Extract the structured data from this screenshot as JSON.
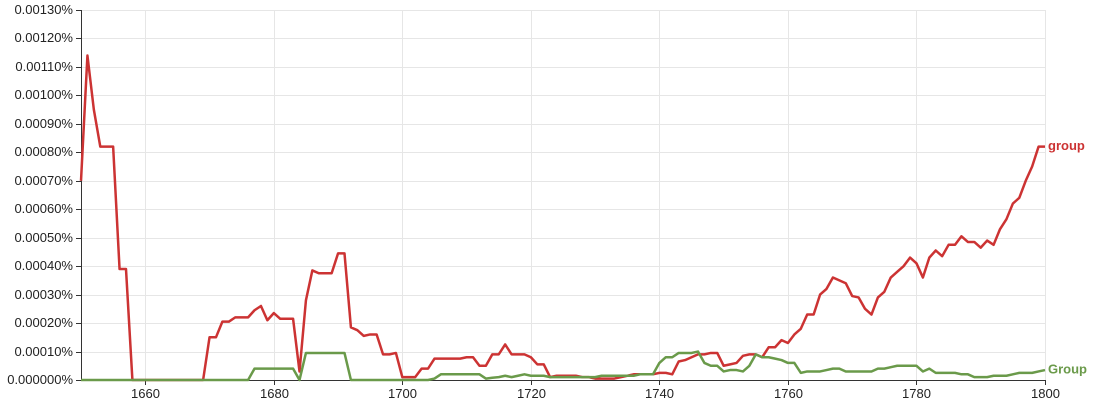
{
  "chart_data": {
    "type": "line",
    "title": "",
    "xlabel": "",
    "ylabel": "",
    "xlim": [
      1650,
      1800
    ],
    "ylim": [
      0,
      0.0013
    ],
    "grid": true,
    "legend": "inline-right",
    "x_ticks": [
      {
        "value": 1660,
        "label": "1660"
      },
      {
        "value": 1680,
        "label": "1680"
      },
      {
        "value": 1700,
        "label": "1700"
      },
      {
        "value": 1720,
        "label": "1720"
      },
      {
        "value": 1740,
        "label": "1740"
      },
      {
        "value": 1760,
        "label": "1760"
      },
      {
        "value": 1780,
        "label": "1780"
      },
      {
        "value": 1800,
        "label": "1800"
      }
    ],
    "y_ticks": [
      {
        "value": 0.0,
        "label": "0.000000%"
      },
      {
        "value": 0.0001,
        "label": "0.00010%"
      },
      {
        "value": 0.0002,
        "label": "0.00020%"
      },
      {
        "value": 0.0003,
        "label": "0.00030%"
      },
      {
        "value": 0.0004,
        "label": "0.00040%"
      },
      {
        "value": 0.0005,
        "label": "0.00050%"
      },
      {
        "value": 0.0006,
        "label": "0.00060%"
      },
      {
        "value": 0.0007,
        "label": "0.00070%"
      },
      {
        "value": 0.0008,
        "label": "0.00080%"
      },
      {
        "value": 0.0009,
        "label": "0.00090%"
      },
      {
        "value": 0.001,
        "label": "0.00100%"
      },
      {
        "value": 0.0011,
        "label": "0.00110%"
      },
      {
        "value": 0.0012,
        "label": "0.00120%"
      },
      {
        "value": 0.0013,
        "label": "0.00130%"
      }
    ],
    "series": [
      {
        "name": "group",
        "color": "#cc3333",
        "points": [
          [
            1650,
            0.0007
          ],
          [
            1651,
            0.00114
          ],
          [
            1652,
            0.00095
          ],
          [
            1653,
            0.00082
          ],
          [
            1654,
            0.00082
          ],
          [
            1655,
            0.00082
          ],
          [
            1656,
            0.00039
          ],
          [
            1657,
            0.00039
          ],
          [
            1658,
            0.0
          ],
          [
            1659,
            0.0
          ],
          [
            1660,
            0.0
          ],
          [
            1661,
            0.0
          ],
          [
            1662,
            0.0
          ],
          [
            1663,
            0.0
          ],
          [
            1664,
            0.0
          ],
          [
            1665,
            0.0
          ],
          [
            1666,
            0.0
          ],
          [
            1667,
            0.0
          ],
          [
            1668,
            0.0
          ],
          [
            1669,
            0.0
          ],
          [
            1670,
            0.00015
          ],
          [
            1671,
            0.00015
          ],
          [
            1672,
            0.000205
          ],
          [
            1673,
            0.000205
          ],
          [
            1674,
            0.00022
          ],
          [
            1675,
            0.00022
          ],
          [
            1676,
            0.00022
          ],
          [
            1677,
            0.000245
          ],
          [
            1678,
            0.00026
          ],
          [
            1679,
            0.00021
          ],
          [
            1680,
            0.000235
          ],
          [
            1681,
            0.000215
          ],
          [
            1682,
            0.000215
          ],
          [
            1683,
            0.000215
          ],
          [
            1684,
            3e-05
          ],
          [
            1685,
            0.00028
          ],
          [
            1686,
            0.000385
          ],
          [
            1687,
            0.000375
          ],
          [
            1688,
            0.000375
          ],
          [
            1689,
            0.000375
          ],
          [
            1690,
            0.000445
          ],
          [
            1691,
            0.000445
          ],
          [
            1692,
            0.000185
          ],
          [
            1693,
            0.000175
          ],
          [
            1694,
            0.000155
          ],
          [
            1695,
            0.00016
          ],
          [
            1696,
            0.00016
          ],
          [
            1697,
            9e-05
          ],
          [
            1698,
            9e-05
          ],
          [
            1699,
            9.5e-05
          ],
          [
            1700,
            1e-05
          ],
          [
            1701,
            1e-05
          ],
          [
            1702,
            1e-05
          ],
          [
            1703,
            4e-05
          ],
          [
            1704,
            4e-05
          ],
          [
            1705,
            7.5e-05
          ],
          [
            1706,
            7.5e-05
          ],
          [
            1707,
            7.5e-05
          ],
          [
            1708,
            7.5e-05
          ],
          [
            1709,
            7.5e-05
          ],
          [
            1710,
            8e-05
          ],
          [
            1711,
            8e-05
          ],
          [
            1712,
            5e-05
          ],
          [
            1713,
            5e-05
          ],
          [
            1714,
            9e-05
          ],
          [
            1715,
            9e-05
          ],
          [
            1716,
            0.000125
          ],
          [
            1717,
            9e-05
          ],
          [
            1718,
            9e-05
          ],
          [
            1719,
            9e-05
          ],
          [
            1720,
            8e-05
          ],
          [
            1721,
            5.5e-05
          ],
          [
            1722,
            5.5e-05
          ],
          [
            1723,
            1e-05
          ],
          [
            1724,
            1.5e-05
          ],
          [
            1725,
            1.5e-05
          ],
          [
            1726,
            1.5e-05
          ],
          [
            1727,
            1.5e-05
          ],
          [
            1728,
            1e-05
          ],
          [
            1729,
            1e-05
          ],
          [
            1730,
            5e-06
          ],
          [
            1731,
            5e-06
          ],
          [
            1732,
            5e-06
          ],
          [
            1733,
            5e-06
          ],
          [
            1734,
            1e-05
          ],
          [
            1735,
            1.5e-05
          ],
          [
            1736,
            2e-05
          ],
          [
            1737,
            2e-05
          ],
          [
            1738,
            2e-05
          ],
          [
            1739,
            2e-05
          ],
          [
            1740,
            2.5e-05
          ],
          [
            1741,
            2.5e-05
          ],
          [
            1742,
            2e-05
          ],
          [
            1743,
            6.5e-05
          ],
          [
            1744,
            7e-05
          ],
          [
            1745,
            8e-05
          ],
          [
            1746,
            9e-05
          ],
          [
            1747,
            9e-05
          ],
          [
            1748,
            9.5e-05
          ],
          [
            1749,
            9.5e-05
          ],
          [
            1750,
            5e-05
          ],
          [
            1751,
            5.5e-05
          ],
          [
            1752,
            6e-05
          ],
          [
            1753,
            8.5e-05
          ],
          [
            1754,
            9e-05
          ],
          [
            1755,
            9e-05
          ],
          [
            1756,
            8e-05
          ],
          [
            1757,
            0.000115
          ],
          [
            1758,
            0.000115
          ],
          [
            1759,
            0.00014
          ],
          [
            1760,
            0.00013
          ],
          [
            1761,
            0.00016
          ],
          [
            1762,
            0.00018
          ],
          [
            1763,
            0.00023
          ],
          [
            1764,
            0.00023
          ],
          [
            1765,
            0.0003
          ],
          [
            1766,
            0.00032
          ],
          [
            1767,
            0.00036
          ],
          [
            1768,
            0.00035
          ],
          [
            1769,
            0.00034
          ],
          [
            1770,
            0.000295
          ],
          [
            1771,
            0.00029
          ],
          [
            1772,
            0.00025
          ],
          [
            1773,
            0.00023
          ],
          [
            1774,
            0.00029
          ],
          [
            1775,
            0.00031
          ],
          [
            1776,
            0.00036
          ],
          [
            1777,
            0.00038
          ],
          [
            1778,
            0.0004
          ],
          [
            1779,
            0.00043
          ],
          [
            1780,
            0.00041
          ],
          [
            1781,
            0.00036
          ],
          [
            1782,
            0.00043
          ],
          [
            1783,
            0.000455
          ],
          [
            1784,
            0.000435
          ],
          [
            1785,
            0.000475
          ],
          [
            1786,
            0.000475
          ],
          [
            1787,
            0.000505
          ],
          [
            1788,
            0.000485
          ],
          [
            1789,
            0.000485
          ],
          [
            1790,
            0.000465
          ],
          [
            1791,
            0.00049
          ],
          [
            1792,
            0.000475
          ],
          [
            1793,
            0.00053
          ],
          [
            1794,
            0.000565
          ],
          [
            1795,
            0.00062
          ],
          [
            1796,
            0.00064
          ],
          [
            1797,
            0.0007
          ],
          [
            1798,
            0.00075
          ],
          [
            1799,
            0.00082
          ],
          [
            1800,
            0.00082
          ]
        ]
      },
      {
        "name": "Group",
        "color": "#6a9a4a",
        "points": [
          [
            1650,
            0.0
          ],
          [
            1675,
            0.0
          ],
          [
            1676,
            0.0
          ],
          [
            1677,
            4e-05
          ],
          [
            1678,
            4e-05
          ],
          [
            1679,
            4e-05
          ],
          [
            1680,
            4e-05
          ],
          [
            1681,
            4e-05
          ],
          [
            1682,
            4e-05
          ],
          [
            1683,
            4e-05
          ],
          [
            1684,
            0.0
          ],
          [
            1685,
            9.5e-05
          ],
          [
            1686,
            9.5e-05
          ],
          [
            1687,
            9.5e-05
          ],
          [
            1688,
            9.5e-05
          ],
          [
            1689,
            9.5e-05
          ],
          [
            1690,
            9.5e-05
          ],
          [
            1691,
            9.5e-05
          ],
          [
            1692,
            0.0
          ],
          [
            1704,
            0.0
          ],
          [
            1705,
            5e-06
          ],
          [
            1706,
            2e-05
          ],
          [
            1707,
            2e-05
          ],
          [
            1708,
            2e-05
          ],
          [
            1709,
            2e-05
          ],
          [
            1710,
            2e-05
          ],
          [
            1711,
            2e-05
          ],
          [
            1712,
            2e-05
          ],
          [
            1713,
            5e-06
          ],
          [
            1714,
            8e-06
          ],
          [
            1715,
            1e-05
          ],
          [
            1716,
            1.5e-05
          ],
          [
            1717,
            1e-05
          ],
          [
            1718,
            1.5e-05
          ],
          [
            1719,
            2e-05
          ],
          [
            1720,
            1.5e-05
          ],
          [
            1721,
            1.5e-05
          ],
          [
            1722,
            1.5e-05
          ],
          [
            1723,
            1e-05
          ],
          [
            1724,
            1e-05
          ],
          [
            1725,
            1e-05
          ],
          [
            1726,
            1e-05
          ],
          [
            1727,
            1e-05
          ],
          [
            1728,
            1e-05
          ],
          [
            1729,
            1e-05
          ],
          [
            1730,
            1e-05
          ],
          [
            1731,
            1.5e-05
          ],
          [
            1732,
            1.5e-05
          ],
          [
            1733,
            1.5e-05
          ],
          [
            1734,
            1.5e-05
          ],
          [
            1735,
            1.5e-05
          ],
          [
            1736,
            1.5e-05
          ],
          [
            1737,
            2e-05
          ],
          [
            1738,
            2e-05
          ],
          [
            1739,
            2e-05
          ],
          [
            1740,
            6e-05
          ],
          [
            1741,
            8e-05
          ],
          [
            1742,
            8e-05
          ],
          [
            1743,
            9.5e-05
          ],
          [
            1744,
            9.5e-05
          ],
          [
            1745,
            9.5e-05
          ],
          [
            1746,
            0.0001
          ],
          [
            1747,
            6e-05
          ],
          [
            1748,
            5e-05
          ],
          [
            1749,
            5e-05
          ],
          [
            1750,
            3e-05
          ],
          [
            1751,
            3.5e-05
          ],
          [
            1752,
            3.5e-05
          ],
          [
            1753,
            3e-05
          ],
          [
            1754,
            5e-05
          ],
          [
            1755,
            9e-05
          ],
          [
            1756,
            8e-05
          ],
          [
            1757,
            8e-05
          ],
          [
            1758,
            7.5e-05
          ],
          [
            1759,
            7e-05
          ],
          [
            1760,
            6e-05
          ],
          [
            1761,
            6e-05
          ],
          [
            1762,
            2.5e-05
          ],
          [
            1763,
            3e-05
          ],
          [
            1764,
            3e-05
          ],
          [
            1765,
            3e-05
          ],
          [
            1766,
            3.5e-05
          ],
          [
            1767,
            4e-05
          ],
          [
            1768,
            4e-05
          ],
          [
            1769,
            3e-05
          ],
          [
            1770,
            3e-05
          ],
          [
            1771,
            3e-05
          ],
          [
            1772,
            3e-05
          ],
          [
            1773,
            3e-05
          ],
          [
            1774,
            4e-05
          ],
          [
            1775,
            4e-05
          ],
          [
            1776,
            4.5e-05
          ],
          [
            1777,
            5e-05
          ],
          [
            1778,
            5e-05
          ],
          [
            1779,
            5e-05
          ],
          [
            1780,
            5e-05
          ],
          [
            1781,
            3e-05
          ],
          [
            1782,
            4e-05
          ],
          [
            1783,
            2.5e-05
          ],
          [
            1784,
            2.5e-05
          ],
          [
            1785,
            2.5e-05
          ],
          [
            1786,
            2.5e-05
          ],
          [
            1787,
            2e-05
          ],
          [
            1788,
            2e-05
          ],
          [
            1789,
            1e-05
          ],
          [
            1790,
            1e-05
          ],
          [
            1791,
            1e-05
          ],
          [
            1792,
            1.5e-05
          ],
          [
            1793,
            1.5e-05
          ],
          [
            1794,
            1.5e-05
          ],
          [
            1795,
            2e-05
          ],
          [
            1796,
            2.5e-05
          ],
          [
            1797,
            2.5e-05
          ],
          [
            1798,
            2.5e-05
          ],
          [
            1799,
            3e-05
          ],
          [
            1800,
            3.5e-05
          ]
        ]
      }
    ]
  }
}
